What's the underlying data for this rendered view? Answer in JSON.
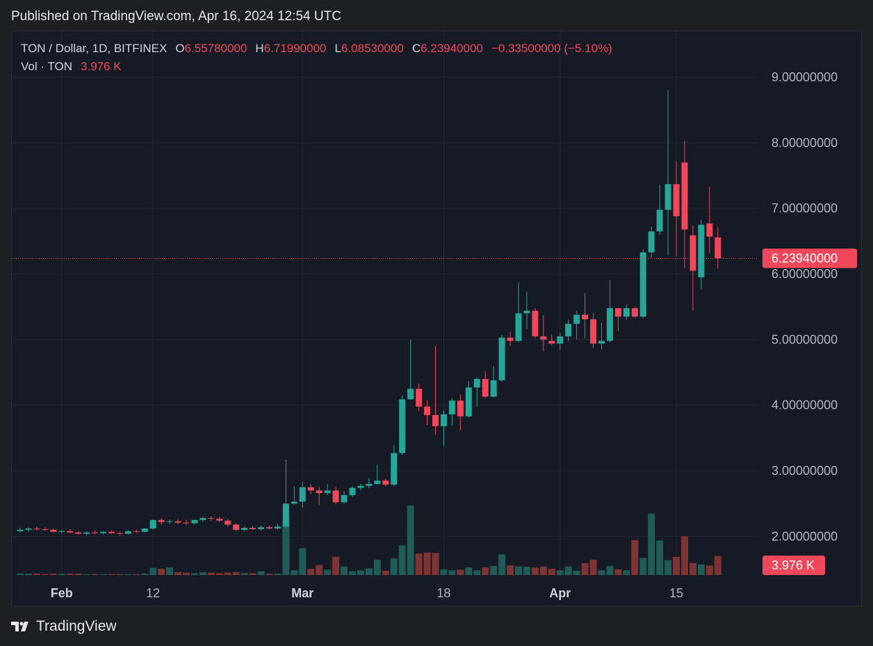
{
  "header": {
    "published": "Published on TradingView.com, Apr 16, 2024 12:54 UTC"
  },
  "legend": {
    "symbol": "TON / Dollar, 1D, BITFINEX",
    "open_label": "O",
    "open": "6.55780000",
    "high_label": "H",
    "high": "6.71990000",
    "low_label": "L",
    "low": "6.08530000",
    "close_label": "C",
    "close": "6.23940000",
    "change": "−0.33500000 (−5.10%)",
    "vol_label": "Vol · TON",
    "vol_value": "3.976 K"
  },
  "footer": {
    "brand": "TradingView"
  },
  "colors": {
    "up": "#26a69a",
    "down": "#f0485a",
    "up_vol": "#1f5b58",
    "down_vol": "#7f3434"
  },
  "chart_data": {
    "type": "candlestick",
    "title": "TON / Dollar, 1D, BITFINEX",
    "ylim": [
      1.4,
      9.7
    ],
    "y_ticks": [
      "9.00000000",
      "8.00000000",
      "7.00000000",
      "6.00000000",
      "5.00000000",
      "4.00000000",
      "3.00000000",
      "2.00000000"
    ],
    "x_ticks": [
      {
        "label": "Feb",
        "index": 5,
        "bold": true
      },
      {
        "label": "12",
        "index": 16,
        "bold": false
      },
      {
        "label": "Mar",
        "index": 34,
        "bold": true
      },
      {
        "label": "18",
        "index": 51,
        "bold": false
      },
      {
        "label": "Apr",
        "index": 65,
        "bold": true
      },
      {
        "label": "15",
        "index": 79,
        "bold": false
      }
    ],
    "last_price": 6.2394,
    "last_price_label": "6.23940000",
    "volume_label": "3.976 K",
    "candles": [
      {
        "o": 2.08,
        "h": 2.13,
        "l": 2.06,
        "c": 2.1,
        "v": 0.3
      },
      {
        "o": 2.1,
        "h": 2.14,
        "l": 2.07,
        "c": 2.12,
        "v": 0.3
      },
      {
        "o": 2.12,
        "h": 2.15,
        "l": 2.09,
        "c": 2.11,
        "v": 0.3
      },
      {
        "o": 2.11,
        "h": 2.14,
        "l": 2.08,
        "c": 2.1,
        "v": 0.2
      },
      {
        "o": 2.1,
        "h": 2.12,
        "l": 2.06,
        "c": 2.07,
        "v": 0.3
      },
      {
        "o": 2.07,
        "h": 2.1,
        "l": 2.05,
        "c": 2.08,
        "v": 0.3
      },
      {
        "o": 2.08,
        "h": 2.11,
        "l": 2.05,
        "c": 2.06,
        "v": 0.3
      },
      {
        "o": 2.06,
        "h": 2.08,
        "l": 2.03,
        "c": 2.04,
        "v": 0.3
      },
      {
        "o": 2.04,
        "h": 2.08,
        "l": 2.02,
        "c": 2.06,
        "v": 0.2
      },
      {
        "o": 2.06,
        "h": 2.09,
        "l": 2.03,
        "c": 2.05,
        "v": 0.2
      },
      {
        "o": 2.05,
        "h": 2.08,
        "l": 2.03,
        "c": 2.07,
        "v": 0.2
      },
      {
        "o": 2.07,
        "h": 2.09,
        "l": 2.04,
        "c": 2.05,
        "v": 0.2
      },
      {
        "o": 2.05,
        "h": 2.07,
        "l": 2.02,
        "c": 2.04,
        "v": 0.2
      },
      {
        "o": 2.04,
        "h": 2.09,
        "l": 2.03,
        "c": 2.08,
        "v": 0.2
      },
      {
        "o": 2.08,
        "h": 2.1,
        "l": 2.05,
        "c": 2.07,
        "v": 0.2
      },
      {
        "o": 2.07,
        "h": 2.13,
        "l": 2.06,
        "c": 2.12,
        "v": 0.3
      },
      {
        "o": 2.12,
        "h": 2.26,
        "l": 2.1,
        "c": 2.25,
        "v": 1.5
      },
      {
        "o": 2.25,
        "h": 2.28,
        "l": 2.18,
        "c": 2.22,
        "v": 1.3
      },
      {
        "o": 2.22,
        "h": 2.26,
        "l": 2.19,
        "c": 2.23,
        "v": 1.6
      },
      {
        "o": 2.23,
        "h": 2.26,
        "l": 2.19,
        "c": 2.21,
        "v": 0.6
      },
      {
        "o": 2.21,
        "h": 2.25,
        "l": 2.17,
        "c": 2.2,
        "v": 0.5
      },
      {
        "o": 2.2,
        "h": 2.26,
        "l": 2.18,
        "c": 2.25,
        "v": 0.4
      },
      {
        "o": 2.25,
        "h": 2.3,
        "l": 2.22,
        "c": 2.28,
        "v": 0.6
      },
      {
        "o": 2.28,
        "h": 2.31,
        "l": 2.24,
        "c": 2.27,
        "v": 0.5
      },
      {
        "o": 2.27,
        "h": 2.3,
        "l": 2.22,
        "c": 2.24,
        "v": 0.4
      },
      {
        "o": 2.24,
        "h": 2.27,
        "l": 2.15,
        "c": 2.18,
        "v": 0.5
      },
      {
        "o": 2.18,
        "h": 2.2,
        "l": 2.08,
        "c": 2.1,
        "v": 0.6
      },
      {
        "o": 2.1,
        "h": 2.15,
        "l": 2.08,
        "c": 2.13,
        "v": 0.4
      },
      {
        "o": 2.13,
        "h": 2.16,
        "l": 2.1,
        "c": 2.11,
        "v": 0.4
      },
      {
        "o": 2.11,
        "h": 2.16,
        "l": 2.09,
        "c": 2.14,
        "v": 0.8
      },
      {
        "o": 2.14,
        "h": 2.16,
        "l": 2.11,
        "c": 2.12,
        "v": 0.3
      },
      {
        "o": 2.12,
        "h": 2.19,
        "l": 2.1,
        "c": 2.15,
        "v": 0.3
      },
      {
        "o": 2.15,
        "h": 3.17,
        "l": 2.12,
        "c": 2.5,
        "v": 11.5
      },
      {
        "o": 2.5,
        "h": 2.76,
        "l": 2.48,
        "c": 2.53,
        "v": 1.0
      },
      {
        "o": 2.53,
        "h": 2.83,
        "l": 2.44,
        "c": 2.75,
        "v": 5.6
      },
      {
        "o": 2.75,
        "h": 2.8,
        "l": 2.64,
        "c": 2.7,
        "v": 1.3
      },
      {
        "o": 2.7,
        "h": 2.76,
        "l": 2.48,
        "c": 2.66,
        "v": 2.1
      },
      {
        "o": 2.66,
        "h": 2.8,
        "l": 2.63,
        "c": 2.7,
        "v": 1.1
      },
      {
        "o": 2.7,
        "h": 2.76,
        "l": 2.49,
        "c": 2.52,
        "v": 3.8
      },
      {
        "o": 2.52,
        "h": 2.69,
        "l": 2.5,
        "c": 2.63,
        "v": 1.8
      },
      {
        "o": 2.63,
        "h": 2.77,
        "l": 2.6,
        "c": 2.74,
        "v": 0.8
      },
      {
        "o": 2.74,
        "h": 2.8,
        "l": 2.7,
        "c": 2.77,
        "v": 1.0
      },
      {
        "o": 2.77,
        "h": 2.89,
        "l": 2.73,
        "c": 2.8,
        "v": 1.4
      },
      {
        "o": 2.8,
        "h": 3.09,
        "l": 2.79,
        "c": 2.85,
        "v": 3.2
      },
      {
        "o": 2.85,
        "h": 2.88,
        "l": 2.76,
        "c": 2.79,
        "v": 0.9
      },
      {
        "o": 2.79,
        "h": 3.4,
        "l": 2.77,
        "c": 3.27,
        "v": 3.5
      },
      {
        "o": 3.27,
        "h": 4.15,
        "l": 3.24,
        "c": 4.09,
        "v": 6.2
      },
      {
        "o": 4.09,
        "h": 5.0,
        "l": 4.08,
        "c": 4.25,
        "v": 14.5
      },
      {
        "o": 4.25,
        "h": 4.33,
        "l": 3.91,
        "c": 3.98,
        "v": 4.5
      },
      {
        "o": 3.98,
        "h": 4.07,
        "l": 3.7,
        "c": 3.85,
        "v": 4.7
      },
      {
        "o": 3.85,
        "h": 4.9,
        "l": 3.55,
        "c": 3.68,
        "v": 4.6
      },
      {
        "o": 3.68,
        "h": 3.92,
        "l": 3.38,
        "c": 3.86,
        "v": 1.2
      },
      {
        "o": 3.86,
        "h": 4.11,
        "l": 3.69,
        "c": 4.07,
        "v": 1.0
      },
      {
        "o": 4.07,
        "h": 4.17,
        "l": 3.62,
        "c": 3.83,
        "v": 1.1
      },
      {
        "o": 3.83,
        "h": 4.37,
        "l": 3.81,
        "c": 4.27,
        "v": 1.6
      },
      {
        "o": 4.27,
        "h": 4.42,
        "l": 3.98,
        "c": 4.4,
        "v": 1.0
      },
      {
        "o": 4.4,
        "h": 4.52,
        "l": 4.11,
        "c": 4.13,
        "v": 1.6
      },
      {
        "o": 4.13,
        "h": 4.6,
        "l": 4.12,
        "c": 4.38,
        "v": 1.9
      },
      {
        "o": 4.38,
        "h": 5.07,
        "l": 4.36,
        "c": 5.03,
        "v": 4.3
      },
      {
        "o": 5.03,
        "h": 5.12,
        "l": 4.9,
        "c": 4.98,
        "v": 2.0
      },
      {
        "o": 4.98,
        "h": 5.87,
        "l": 4.96,
        "c": 5.4,
        "v": 1.8
      },
      {
        "o": 5.4,
        "h": 5.73,
        "l": 5.16,
        "c": 5.44,
        "v": 1.7
      },
      {
        "o": 5.44,
        "h": 5.48,
        "l": 5.02,
        "c": 5.05,
        "v": 1.6
      },
      {
        "o": 5.05,
        "h": 5.37,
        "l": 4.82,
        "c": 5.0,
        "v": 1.8
      },
      {
        "o": 4.98,
        "h": 5.08,
        "l": 4.91,
        "c": 4.94,
        "v": 1.3
      },
      {
        "o": 4.94,
        "h": 5.1,
        "l": 4.84,
        "c": 5.05,
        "v": 1.0
      },
      {
        "o": 5.05,
        "h": 5.3,
        "l": 4.98,
        "c": 5.24,
        "v": 1.8
      },
      {
        "o": 5.24,
        "h": 5.44,
        "l": 5.0,
        "c": 5.38,
        "v": 0.9
      },
      {
        "o": 5.38,
        "h": 5.71,
        "l": 5.02,
        "c": 5.31,
        "v": 2.5
      },
      {
        "o": 5.31,
        "h": 5.41,
        "l": 4.87,
        "c": 4.94,
        "v": 3.2
      },
      {
        "o": 4.94,
        "h": 5.26,
        "l": 4.85,
        "c": 4.98,
        "v": 1.0
      },
      {
        "o": 4.98,
        "h": 5.91,
        "l": 4.96,
        "c": 5.48,
        "v": 1.9
      },
      {
        "o": 5.48,
        "h": 5.48,
        "l": 5.13,
        "c": 5.35,
        "v": 1.2
      },
      {
        "o": 5.35,
        "h": 5.54,
        "l": 5.3,
        "c": 5.48,
        "v": 1.0
      },
      {
        "o": 5.48,
        "h": 5.5,
        "l": 5.33,
        "c": 5.35,
        "v": 7.3
      },
      {
        "o": 5.35,
        "h": 6.38,
        "l": 5.33,
        "c": 6.33,
        "v": 3.6
      },
      {
        "o": 6.33,
        "h": 6.72,
        "l": 6.25,
        "c": 6.65,
        "v": 12.8
      },
      {
        "o": 6.65,
        "h": 7.36,
        "l": 6.6,
        "c": 6.98,
        "v": 7.2
      },
      {
        "o": 6.98,
        "h": 8.8,
        "l": 6.28,
        "c": 7.37,
        "v": 3.1
      },
      {
        "o": 7.37,
        "h": 7.72,
        "l": 6.27,
        "c": 6.88,
        "v": 3.8
      },
      {
        "o": 7.7,
        "h": 8.03,
        "l": 6.09,
        "c": 6.68,
        "v": 8.1
      },
      {
        "o": 6.59,
        "h": 6.74,
        "l": 5.44,
        "c": 6.05,
        "v": 2.5
      },
      {
        "o": 5.95,
        "h": 6.83,
        "l": 5.76,
        "c": 6.75,
        "v": 2.2
      },
      {
        "o": 6.77,
        "h": 7.33,
        "l": 6.32,
        "c": 6.57,
        "v": 2.0
      },
      {
        "o": 6.5578,
        "h": 6.7199,
        "l": 6.0853,
        "c": 6.2394,
        "v": 3.976
      }
    ]
  }
}
